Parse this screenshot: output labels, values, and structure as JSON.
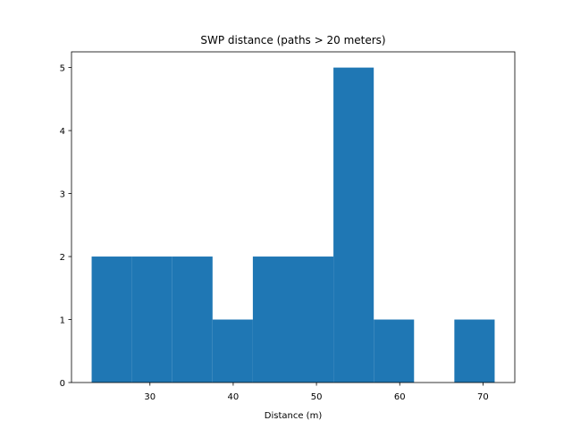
{
  "chart_data": {
    "type": "bar",
    "subtype": "histogram",
    "title": "SWP distance (paths > 20 meters)",
    "xlabel": "Distance (m)",
    "ylabel": "",
    "bin_edges": [
      23.0,
      27.84,
      32.68,
      37.52,
      42.36,
      47.2,
      52.04,
      56.88,
      61.72,
      66.56,
      71.4
    ],
    "values": [
      2,
      2,
      2,
      1,
      2,
      2,
      5,
      1,
      0,
      1
    ],
    "xlim": [
      20.58,
      73.82
    ],
    "ylim": [
      0,
      5.25
    ],
    "xticks": [
      30,
      40,
      50,
      60,
      70
    ],
    "yticks": [
      0,
      1,
      2,
      3,
      4,
      5
    ],
    "bar_color": "#1f77b4",
    "grid": false,
    "legend": "none"
  }
}
